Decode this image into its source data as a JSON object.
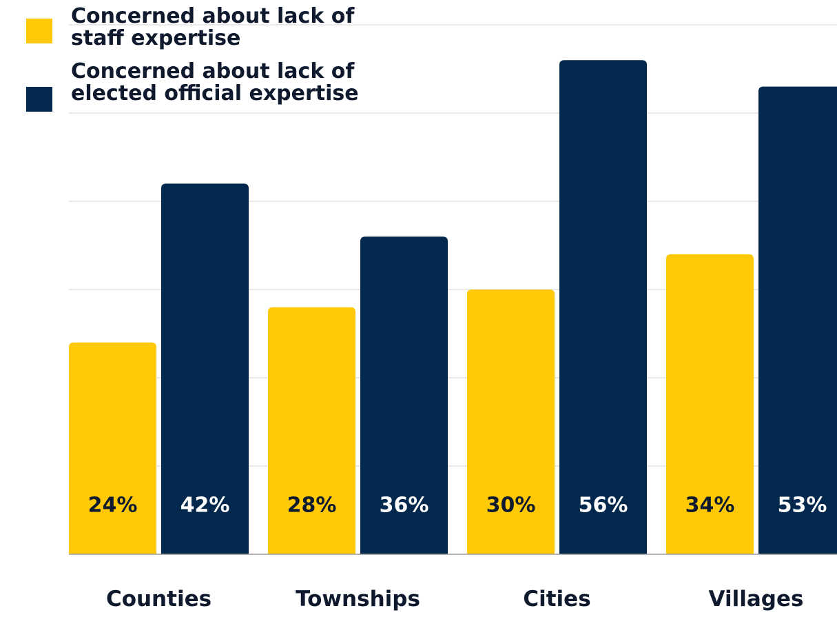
{
  "chart_data": {
    "type": "bar",
    "categories": [
      "Counties",
      "Townships",
      "Cities",
      "Villages"
    ],
    "series": [
      {
        "name": "Concerned about lack of staff expertise",
        "values": [
          24,
          28,
          30,
          34
        ],
        "labels": [
          "24%",
          "28%",
          "30%",
          "34%"
        ],
        "color": "#ffc907",
        "label_color": "#0f1a2e"
      },
      {
        "name": "Concerned about lack of elected official expertise",
        "values": [
          42,
          36,
          56,
          53
        ],
        "labels": [
          "42%",
          "36%",
          "56%",
          "53%"
        ],
        "color": "#02284d",
        "label_color": "#ffffff"
      }
    ],
    "ylim": [
      0,
      60
    ],
    "grid": true,
    "legend_position": "top-left",
    "title": "",
    "xlabel": "",
    "ylabel": ""
  }
}
